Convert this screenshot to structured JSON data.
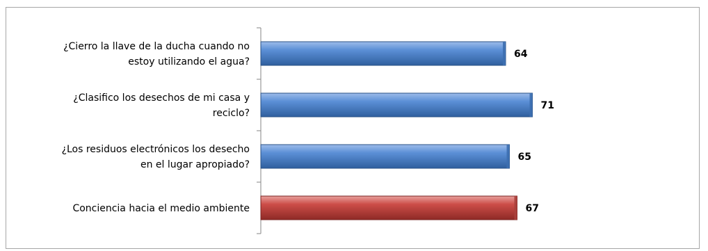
{
  "chart_data": {
    "type": "bar",
    "orientation": "horizontal",
    "categories": [
      [
        "¿Cierro la llave de la ducha cuando no",
        "estoy utilizando el agua?"
      ],
      [
        "¿Clasifico los desechos de mi casa y",
        "reciclo?"
      ],
      [
        "¿Los residuos electrónicos los desecho",
        "en el lugar apropiado?"
      ],
      [
        "Conciencia hacia el medio ambiente"
      ]
    ],
    "values": [
      64,
      71,
      65,
      67
    ],
    "data_labels": [
      "64",
      "71",
      "65",
      "67"
    ],
    "bar_colors": [
      "#4f81bd",
      "#4f81bd",
      "#4f81bd",
      "#c0504d"
    ],
    "xlim": [
      0,
      80
    ],
    "grid": false,
    "legend": "none",
    "title": "",
    "xlabel": "",
    "ylabel": ""
  }
}
